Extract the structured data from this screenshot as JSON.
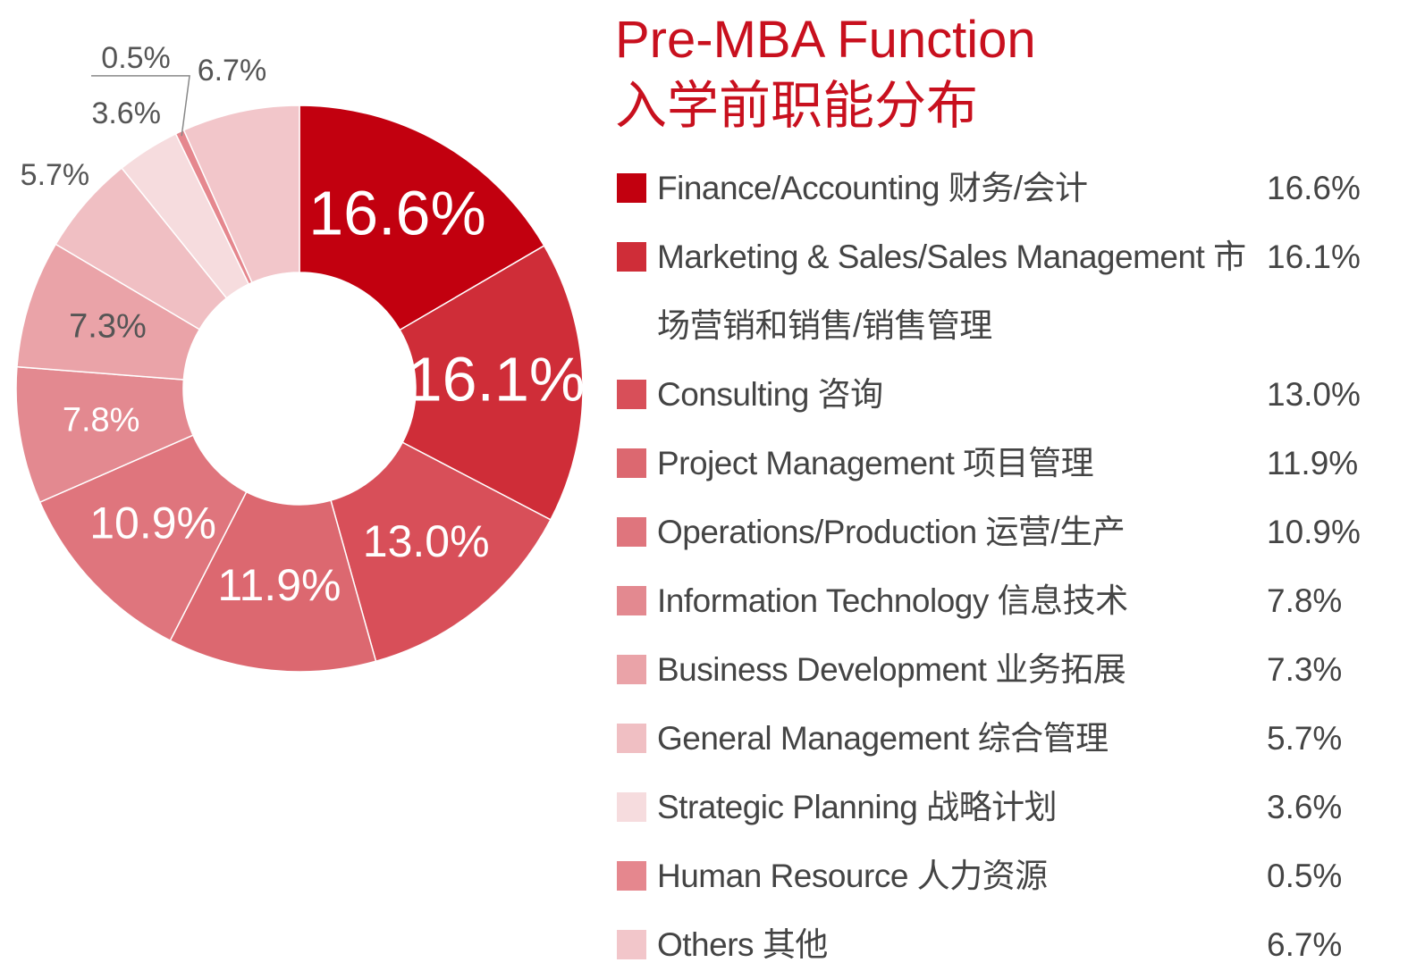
{
  "chart_data": {
    "type": "pie",
    "donut": true,
    "title": "Pre-MBA Function",
    "subtitle": "入学前职能分布",
    "categories": [
      "Finance/Accounting 财务/会计",
      "Marketing & Sales/Sales Management 市场营销和销售/销售管理",
      "Consulting 咨询",
      "Project Management 项目管理",
      "Operations/Production  运营/生产",
      "Information Technology 信息技术",
      "Business Development 业务拓展",
      "General Management 综合管理",
      "Strategic Planning  战略计划",
      "Human Resource 人力资源",
      "Others 其他"
    ],
    "values": [
      16.6,
      16.1,
      13.0,
      11.9,
      10.9,
      7.8,
      7.3,
      5.7,
      3.6,
      0.5,
      6.7
    ],
    "value_labels": [
      "16.6%",
      "16.1%",
      "13.0%",
      "11.9%",
      "10.9%",
      "7.8%",
      "7.3%",
      "5.7%",
      "3.6%",
      "0.5%",
      "6.7%"
    ],
    "colors": [
      "#c2000f",
      "#cf2d38",
      "#d84f59",
      "#dc6870",
      "#df757d",
      "#e38990",
      "#eaa3a8",
      "#f0bfc3",
      "#f6dcde",
      "#e5878e",
      "#f2c6ca"
    ],
    "legend": "right"
  }
}
